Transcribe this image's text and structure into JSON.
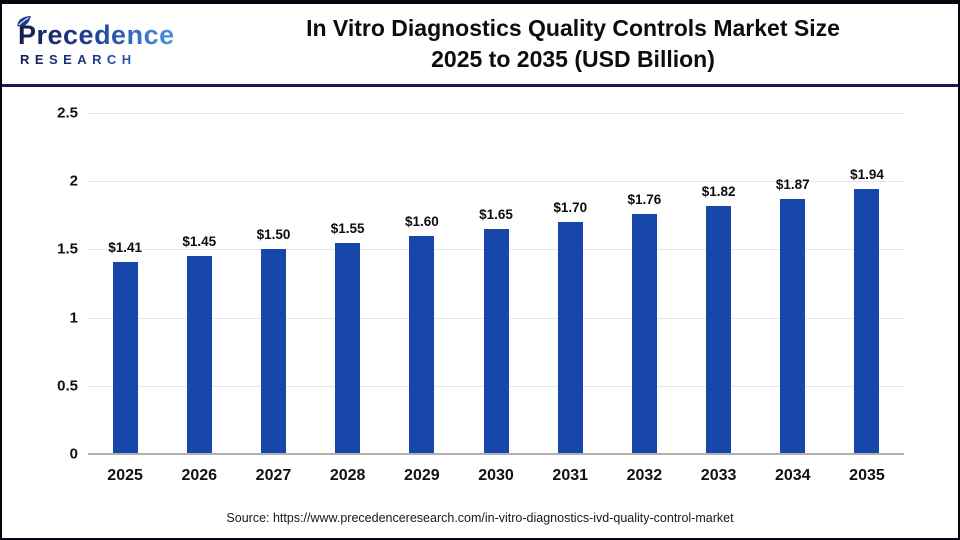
{
  "header": {
    "logo": {
      "line1": "Precedence",
      "line2": "RESEARCH",
      "gradient_start": "#131c4e",
      "gradient_end": "#4e93e6"
    },
    "title_line1": "In Vitro Diagnostics Quality Controls Market Size",
    "title_line2": "2025 to 2035 (USD Billion)"
  },
  "chart_data": {
    "type": "bar",
    "title": "In Vitro Diagnostics Quality Controls Market Size 2025 to 2035 (USD Billion)",
    "categories": [
      "2025",
      "2026",
      "2027",
      "2028",
      "2029",
      "2030",
      "2031",
      "2032",
      "2033",
      "2034",
      "2035"
    ],
    "values": [
      1.41,
      1.45,
      1.5,
      1.55,
      1.6,
      1.65,
      1.7,
      1.76,
      1.82,
      1.87,
      1.94
    ],
    "value_labels": [
      "$1.41",
      "$1.45",
      "$1.50",
      "$1.55",
      "$1.60",
      "$1.65",
      "$1.70",
      "$1.76",
      "$1.82",
      "$1.87",
      "$1.94"
    ],
    "xlabel": "",
    "ylabel": "",
    "ylim": [
      0,
      2.5
    ],
    "yticks": [
      2.5,
      2,
      1.5,
      1,
      0.5,
      0
    ],
    "ytick_labels": [
      "2.5",
      "2",
      "1.5",
      "1",
      "0.5",
      "0"
    ],
    "grid": true,
    "legend": false,
    "bar_color": "#1747ab",
    "gridline_color": "#e7e7e7",
    "baseline_color": "#b1b1b1"
  },
  "footer": {
    "source": "Source: https://www.precedenceresearch.com/in-vitro-diagnostics-ivd-quality-control-market"
  }
}
